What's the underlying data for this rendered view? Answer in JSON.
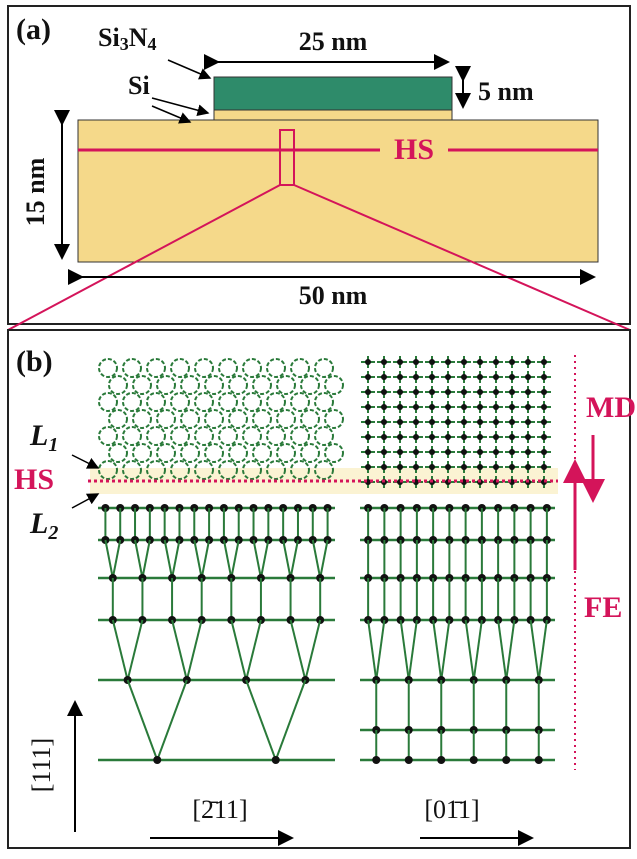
{
  "panel_a": {
    "label": "(a)",
    "si3n4": {
      "parts": [
        "Si",
        "3",
        "N",
        "4"
      ]
    },
    "si": "Si",
    "width_top": "25 nm",
    "thickness_top": "5 nm",
    "thickness_sub": "15 nm",
    "hs": "HS",
    "width_sub": "50 nm"
  },
  "panel_b": {
    "label": "(b)",
    "l1": {
      "letter": "L",
      "sub": "1"
    },
    "hs": "HS",
    "l2": {
      "letter": "L",
      "sub": "2"
    },
    "md": "MD",
    "fe": "FE",
    "dir_vertical": "[111]",
    "dir_left": "[2̄11]",
    "dir_right": "[01̄1]"
  }
}
